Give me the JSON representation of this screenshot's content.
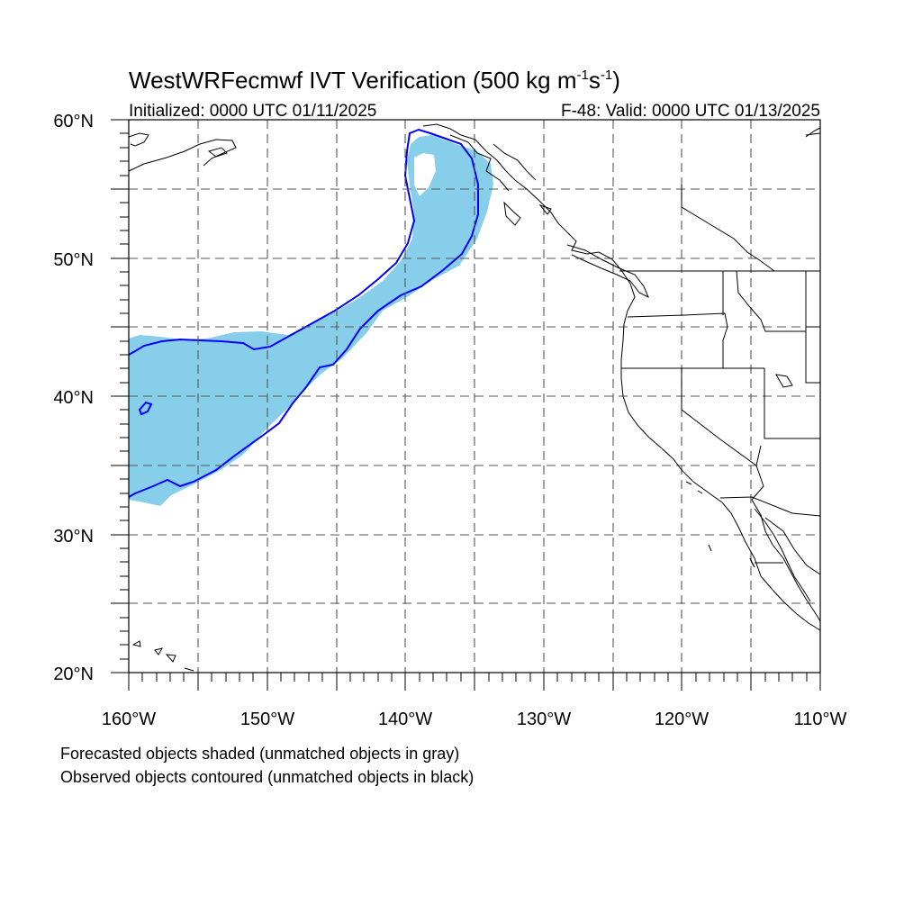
{
  "map": {
    "title_main": "WestWRFecmwf IVT Verification (500 kg m",
    "title_exp1": "-1",
    "title_mid": "s",
    "title_exp2": "-1",
    "title_end": ")",
    "initialized": "Initialized: 0000 UTC 01/11/2025",
    "valid": "F-48: Valid: 0000 UTC 01/13/2025",
    "lat_labels": [
      "60°N",
      "50°N",
      "40°N",
      "30°N",
      "20°N"
    ],
    "lon_labels": [
      "160°W",
      "150°W",
      "140°W",
      "130°W",
      "120°W",
      "110°W"
    ],
    "lon_range": [
      -160,
      -110
    ],
    "lat_range": [
      20,
      60
    ],
    "note_forecast": "Forecasted objects shaded (unmatched objects in gray)",
    "note_observed": "Observed objects contoured (unmatched objects in black)",
    "colors": {
      "forecast_fill": "#87ceeb",
      "observed_contour": "#0000ff",
      "coast": "#000000",
      "grid": "#555555"
    }
  }
}
